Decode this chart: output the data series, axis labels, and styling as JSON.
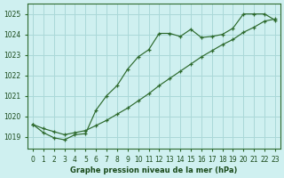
{
  "line1_x": [
    0,
    1,
    2,
    3,
    4,
    5,
    6,
    7,
    8,
    9,
    10,
    11,
    12,
    13,
    14,
    15,
    16,
    17,
    18,
    19,
    20,
    21,
    22,
    23
  ],
  "line1_y": [
    1019.6,
    1019.2,
    1018.95,
    1018.85,
    1019.1,
    1019.15,
    1020.3,
    1021.0,
    1021.5,
    1022.3,
    1022.9,
    1023.25,
    1024.05,
    1024.05,
    1023.9,
    1024.25,
    1023.85,
    1023.9,
    1024.0,
    1024.3,
    1025.0,
    1025.0,
    1025.0,
    1024.7
  ],
  "line2_x": [
    0,
    1,
    2,
    3,
    4,
    5,
    6,
    7,
    8,
    9,
    10,
    11,
    12,
    13,
    14,
    15,
    16,
    17,
    18,
    19,
    20,
    21,
    22,
    23
  ],
  "line2_y": [
    1019.6,
    1019.4,
    1019.25,
    1019.1,
    1019.2,
    1019.3,
    1019.55,
    1019.8,
    1020.1,
    1020.4,
    1020.75,
    1021.1,
    1021.5,
    1021.85,
    1022.2,
    1022.55,
    1022.9,
    1023.2,
    1023.5,
    1023.75,
    1024.1,
    1024.35,
    1024.65,
    1024.75
  ],
  "line_color": "#2d6a2d",
  "bg_color": "#cff0f0",
  "grid_color": "#aad8d8",
  "xlabel": "Graphe pression niveau de la mer (hPa)",
  "xlabel_color": "#1a4a1a",
  "ylabel_ticks": [
    1019,
    1020,
    1021,
    1022,
    1023,
    1024,
    1025
  ],
  "xticks": [
    0,
    1,
    2,
    3,
    4,
    5,
    6,
    7,
    8,
    9,
    10,
    11,
    12,
    13,
    14,
    15,
    16,
    17,
    18,
    19,
    20,
    21,
    22,
    23
  ],
  "ylim": [
    1018.4,
    1025.5
  ],
  "xlim": [
    -0.5,
    23.5
  ]
}
